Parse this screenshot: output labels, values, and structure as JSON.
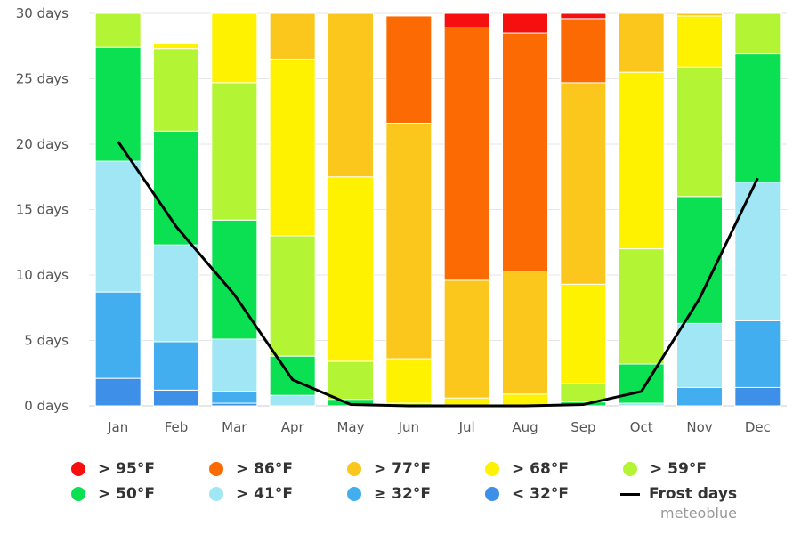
{
  "chart_data": {
    "type": "bar",
    "stacked": true,
    "categories": [
      "Jan",
      "Feb",
      "Mar",
      "Apr",
      "May",
      "Jun",
      "Jul",
      "Aug",
      "Sep",
      "Oct",
      "Nov",
      "Dec"
    ],
    "ylim": [
      0,
      30
    ],
    "yticks": [
      0,
      5,
      10,
      15,
      20,
      25,
      30
    ],
    "ytick_labels": [
      "0 days",
      "5 days",
      "10 days",
      "15 days",
      "20 days",
      "25 days",
      "30 days"
    ],
    "grid": true,
    "legend_position": "bottom",
    "series": [
      {
        "name": "< 32°F",
        "color": "#3d8fe8",
        "values": [
          2.1,
          1.2,
          0.2,
          0,
          0,
          0,
          0,
          0,
          0,
          0,
          0,
          1.4
        ]
      },
      {
        "name": "≥ 32°F",
        "color": "#42aef0",
        "values": [
          6.6,
          3.7,
          0.9,
          0,
          0,
          0,
          0,
          0,
          0,
          0,
          1.4,
          5.1
        ]
      },
      {
        "name": "> 41°F",
        "color": "#a0e6f5",
        "values": [
          10.0,
          7.4,
          4.0,
          0.8,
          0,
          0,
          0,
          0,
          0,
          0.2,
          4.9,
          10.6
        ]
      },
      {
        "name": "> 50°F",
        "color": "#0be052",
        "values": [
          8.7,
          8.7,
          9.1,
          3.0,
          0.5,
          0,
          0,
          0,
          0.3,
          3.0,
          9.7,
          9.8
        ]
      },
      {
        "name": "> 59°F",
        "color": "#b3f534",
        "values": [
          2.6,
          6.3,
          10.5,
          9.2,
          2.9,
          0.2,
          0,
          0,
          1.4,
          8.8,
          9.9,
          3.1
        ]
      },
      {
        "name": "> 68°F",
        "color": "#fff200",
        "values": [
          0,
          0.4,
          5.3,
          13.5,
          14.1,
          3.4,
          0.6,
          0.9,
          7.6,
          13.5,
          3.9,
          0
        ]
      },
      {
        "name": "> 77°F",
        "color": "#fcc71d",
        "values": [
          0,
          0,
          0,
          3.5,
          12.5,
          18.0,
          9.0,
          9.4,
          15.4,
          4.5,
          0.2,
          0
        ]
      },
      {
        "name": "> 86°F",
        "color": "#fc6a03",
        "values": [
          0,
          0,
          0,
          0,
          0,
          8.2,
          19.3,
          18.2,
          4.9,
          0,
          0,
          0
        ]
      },
      {
        "name": "> 95°F",
        "color": "#f50f0f",
        "values": [
          0,
          0,
          0,
          0,
          0,
          0,
          1.1,
          1.5,
          0.4,
          0,
          0,
          0
        ]
      }
    ],
    "line": {
      "name": "Frost days",
      "color": "#000000",
      "values": [
        20.2,
        13.7,
        8.5,
        2.0,
        0.1,
        0,
        0,
        0,
        0.1,
        1.1,
        8.2,
        17.4
      ]
    }
  },
  "legend": [
    {
      "label": "> 95°F",
      "color": "#f50f0f",
      "kind": "dot"
    },
    {
      "label": "> 86°F",
      "color": "#fc6a03",
      "kind": "dot"
    },
    {
      "label": "> 77°F",
      "color": "#fcc71d",
      "kind": "dot"
    },
    {
      "label": "> 68°F",
      "color": "#fff200",
      "kind": "dot"
    },
    {
      "label": "> 59°F",
      "color": "#b3f534",
      "kind": "dot"
    },
    {
      "label": "> 50°F",
      "color": "#0be052",
      "kind": "dot"
    },
    {
      "label": "> 41°F",
      "color": "#a0e6f5",
      "kind": "dot"
    },
    {
      "label": "≥ 32°F",
      "color": "#42aef0",
      "kind": "dot"
    },
    {
      "label": "< 32°F",
      "color": "#3d8fe8",
      "kind": "dot"
    },
    {
      "label": "Frost days",
      "color": "#000000",
      "kind": "line"
    }
  ],
  "credit": "meteoblue"
}
